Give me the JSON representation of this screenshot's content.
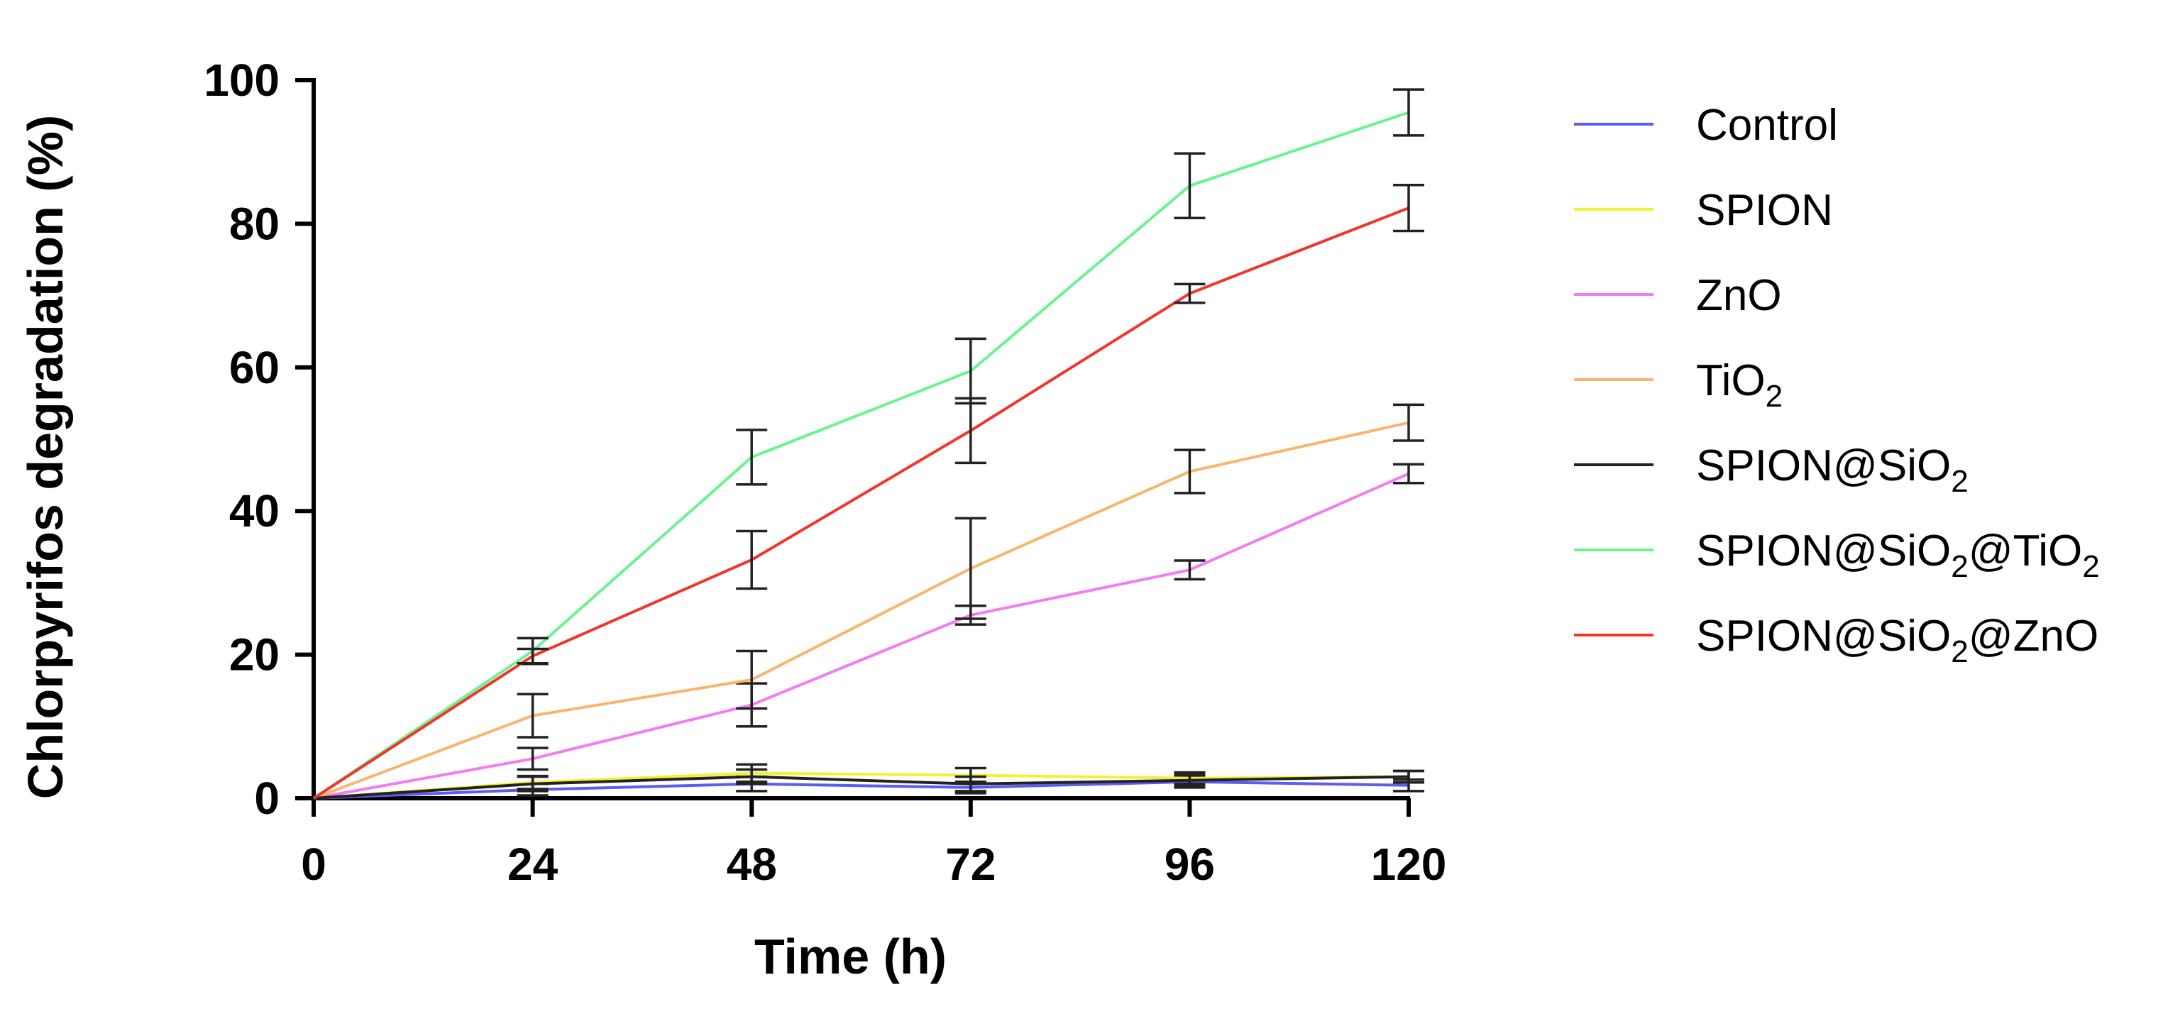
{
  "chart_data": {
    "type": "line",
    "title": "",
    "xlabel": "Time (h)",
    "ylabel": "Chlorpyrifos degradation (%)",
    "x": [
      0,
      24,
      48,
      72,
      96,
      120
    ],
    "xlim": [
      0,
      120
    ],
    "ylim": [
      0,
      100
    ],
    "xticks": [
      0,
      24,
      48,
      72,
      96,
      120
    ],
    "yticks": [
      0,
      20,
      40,
      60,
      80,
      100
    ],
    "grid": false,
    "legend_position": "right",
    "series": [
      {
        "name": "Control",
        "label_main": "Control",
        "label_sub": "",
        "label_tail": "",
        "color": "#5b5bf5",
        "values": [
          0,
          1.2,
          2.0,
          1.5,
          2.3,
          1.8
        ],
        "errors": [
          0,
          0.8,
          1.0,
          0.8,
          0.8,
          0.8
        ]
      },
      {
        "name": "SPION",
        "label_main": "SPION",
        "label_sub": "",
        "label_tail": "",
        "color": "#f2f230",
        "values": [
          0,
          2.2,
          3.5,
          3.2,
          2.8,
          3.0
        ],
        "errors": [
          0,
          0.9,
          1.2,
          1.0,
          0.8,
          0.8
        ]
      },
      {
        "name": "ZnO",
        "label_main": "ZnO",
        "label_sub": "",
        "label_tail": "",
        "color": "#f27cf2",
        "values": [
          0,
          5.5,
          13.0,
          25.5,
          31.8,
          45.2
        ],
        "errors": [
          0,
          1.5,
          3.0,
          1.3,
          1.3,
          1.3
        ]
      },
      {
        "name": "TiO2",
        "label_main": "TiO",
        "label_sub": "2",
        "label_tail": "",
        "color": "#f9b56d",
        "values": [
          0,
          11.5,
          16.5,
          32.0,
          45.5,
          52.3
        ],
        "errors": [
          0,
          3.0,
          4.0,
          7.0,
          3.0,
          2.5
        ]
      },
      {
        "name": "SPION@SiO2",
        "label_main": "SPION@SiO",
        "label_sub": "2",
        "label_tail": "",
        "color": "#222222",
        "values": [
          0,
          2.0,
          3.0,
          2.0,
          2.5,
          3.0
        ],
        "errors": [
          0,
          1.0,
          1.0,
          1.0,
          0.8,
          0.8
        ]
      },
      {
        "name": "SPION@SiO2@TiO2",
        "label_main": "SPION@SiO",
        "label_sub": "2",
        "label_tail": "@TiO",
        "label_sub2": "2",
        "color": "#6cf291",
        "values": [
          0,
          20.5,
          47.5,
          59.5,
          85.3,
          95.5
        ],
        "errors": [
          0,
          1.8,
          3.8,
          4.5,
          4.5,
          3.2
        ]
      },
      {
        "name": "SPION@SiO2@ZnO",
        "label_main": "SPION@SiO",
        "label_sub": "2",
        "label_tail": "@ZnO",
        "color": "#f2352b",
        "values": [
          0,
          19.8,
          33.2,
          51.2,
          70.3,
          82.2
        ],
        "errors": [
          0,
          1.0,
          4.0,
          4.5,
          1.3,
          3.2
        ]
      }
    ]
  }
}
